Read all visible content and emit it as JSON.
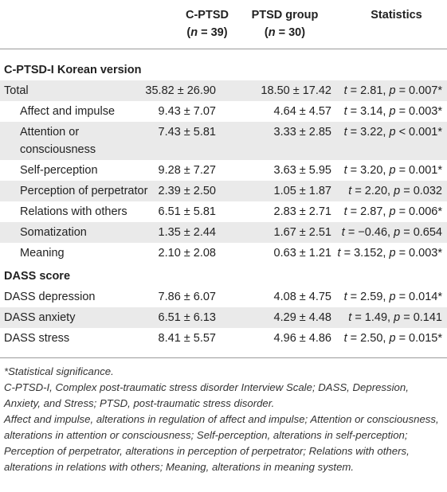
{
  "header": {
    "col1_line1": "C-PTSD",
    "col1_n_label": "n",
    "col1_n_value": "= 39)",
    "col2_line1": "PTSD group",
    "col2_n_label": "n",
    "col2_n_value": "= 30)",
    "col3": "Statistics"
  },
  "sections": [
    {
      "title": "C-PTSD-I Korean version",
      "rows": [
        {
          "label": "Total",
          "c1": "35.82 ± 26.90",
          "c2": "18.50 ± 17.42",
          "stat_t": "= 2.81,",
          "stat_p": "= 0.007*"
        },
        {
          "label": "Affect and impulse",
          "c1": "9.43 ± 7.07",
          "c2": "4.64 ± 4.57",
          "stat_t": "= 3.14,",
          "stat_p": "= 0.003*"
        },
        {
          "label": "Attention or consciousness",
          "c1": "7.43 ± 5.81",
          "c2": "3.33 ± 2.85",
          "stat_t": "= 3.22,",
          "stat_p": "< 0.001*"
        },
        {
          "label": "Self-perception",
          "c1": "9.28 ± 7.27",
          "c2": "3.63 ± 5.95",
          "stat_t": "= 3.20,",
          "stat_p": "= 0.001*"
        },
        {
          "label": "Perception of perpetrator",
          "c1": "2.39 ± 2.50",
          "c2": "1.05 ± 1.87",
          "stat_t": "= 2.20,",
          "stat_p": "= 0.032"
        },
        {
          "label": "Relations with others",
          "c1": "6.51 ± 5.81",
          "c2": "2.83 ± 2.71",
          "stat_t": "= 2.87,",
          "stat_p": "= 0.006*"
        },
        {
          "label": "Somatization",
          "c1": "1.35 ± 2.44",
          "c2": "1.67 ± 2.51",
          "stat_t": "= −0.46,",
          "stat_p": "= 0.654"
        },
        {
          "label": "Meaning",
          "c1": "2.10 ± 2.08",
          "c2": "0.63 ± 1.21",
          "stat_t": "= 3.152,",
          "stat_p": "= 0.003*"
        }
      ]
    },
    {
      "title": "DASS score",
      "rows": [
        {
          "label": "DASS depression",
          "c1": "7.86 ± 6.07",
          "c2": "4.08 ± 4.75",
          "stat_t": "= 2.59,",
          "stat_p": "= 0.014*"
        },
        {
          "label": "DASS anxiety",
          "c1": "6.51 ± 6.13",
          "c2": "4.29 ± 4.48",
          "stat_t": "= 1.49,",
          "stat_p": "= 0.141"
        },
        {
          "label": "DASS stress",
          "c1": "8.41 ± 5.57",
          "c2": "4.96 ± 4.86",
          "stat_t": "= 2.50,",
          "stat_p": "= 0.015*"
        }
      ]
    }
  ],
  "stat_t_symbol": "t",
  "stat_p_symbol": "p",
  "footnotes": [
    "*Statistical significance.",
    "C-PTSD-I, Complex post-traumatic stress disorder Interview Scale; DASS, Depression, Anxiety, and Stress; PTSD, post-traumatic stress disorder.",
    "Affect and impulse, alterations in regulation of affect and impulse; Attention or consciousness, alterations in attention or consciousness; Self-perception, alterations in self-perception; Perception of perpetrator, alterations in perception of perpetrator; Relations with others, alterations in relations with others; Meaning, alterations in meaning system."
  ]
}
